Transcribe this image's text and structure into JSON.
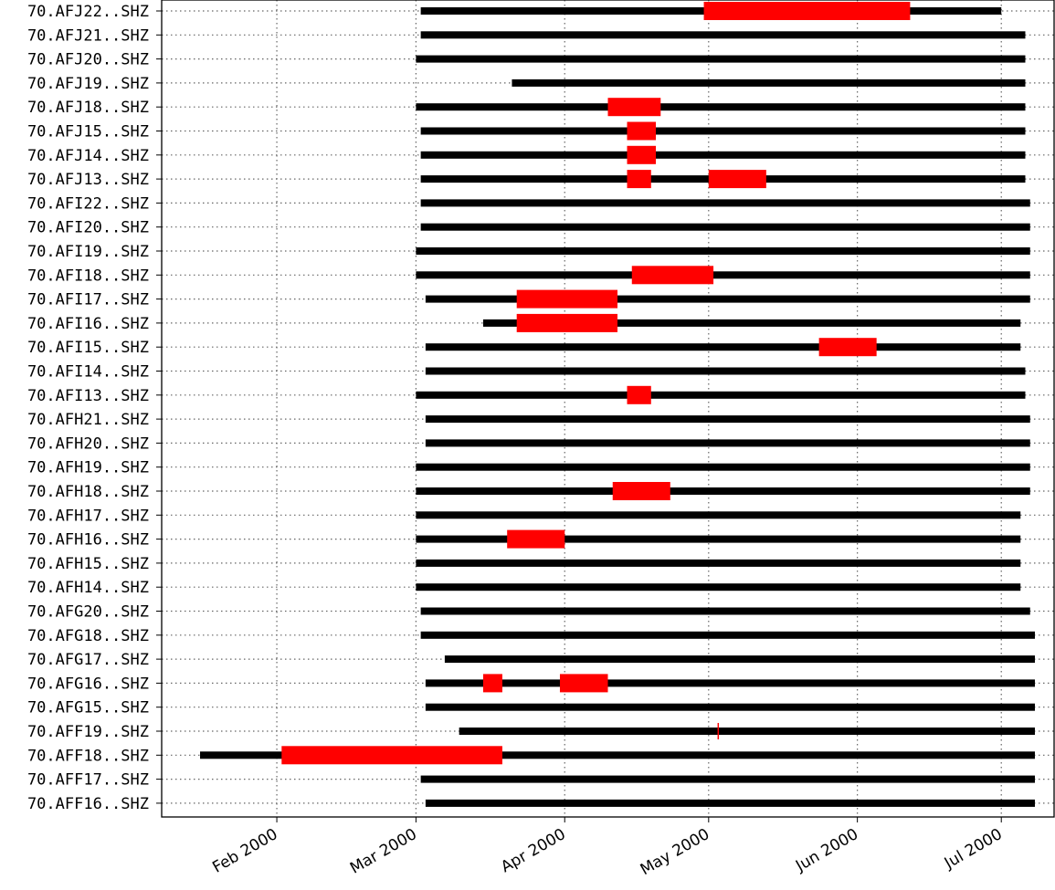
{
  "chart_data": {
    "type": "gantt",
    "title": "",
    "xlabel": "",
    "ylabel": "",
    "grid": true,
    "colors": {
      "data": "#000000",
      "gap": "#ff0000"
    },
    "x_range": [
      "2000-01-08",
      "2000-07-12"
    ],
    "x_ticks": [
      {
        "date": "2000-02-01",
        "label": "Feb 2000"
      },
      {
        "date": "2000-03-01",
        "label": "Mar 2000"
      },
      {
        "date": "2000-04-01",
        "label": "Apr 2000"
      },
      {
        "date": "2000-05-01",
        "label": "May 2000"
      },
      {
        "date": "2000-06-01",
        "label": "Jun 2000"
      },
      {
        "date": "2000-07-01",
        "label": "Jul 2000"
      }
    ],
    "stations": [
      {
        "label": "70.AFJ22..SHZ",
        "start": "2000-03-02",
        "end": "2000-07-01",
        "gaps": [
          [
            "2000-04-30",
            "2000-06-12"
          ]
        ]
      },
      {
        "label": "70.AFJ21..SHZ",
        "start": "2000-03-02",
        "end": "2000-07-06",
        "gaps": []
      },
      {
        "label": "70.AFJ20..SHZ",
        "start": "2000-03-01",
        "end": "2000-07-06",
        "gaps": []
      },
      {
        "label": "70.AFJ19..SHZ",
        "start": "2000-03-21",
        "end": "2000-07-06",
        "gaps": []
      },
      {
        "label": "70.AFJ18..SHZ",
        "start": "2000-03-01",
        "end": "2000-07-06",
        "gaps": [
          [
            "2000-04-10",
            "2000-04-21"
          ]
        ]
      },
      {
        "label": "70.AFJ15..SHZ",
        "start": "2000-03-02",
        "end": "2000-07-06",
        "gaps": [
          [
            "2000-04-14",
            "2000-04-20"
          ]
        ]
      },
      {
        "label": "70.AFJ14..SHZ",
        "start": "2000-03-02",
        "end": "2000-07-06",
        "gaps": [
          [
            "2000-04-14",
            "2000-04-20"
          ]
        ]
      },
      {
        "label": "70.AFJ13..SHZ",
        "start": "2000-03-02",
        "end": "2000-07-06",
        "gaps": [
          [
            "2000-04-14",
            "2000-04-19"
          ],
          [
            "2000-05-01",
            "2000-05-13"
          ]
        ]
      },
      {
        "label": "70.AFI22..SHZ",
        "start": "2000-03-02",
        "end": "2000-07-07",
        "gaps": []
      },
      {
        "label": "70.AFI20..SHZ",
        "start": "2000-03-02",
        "end": "2000-07-07",
        "gaps": []
      },
      {
        "label": "70.AFI19..SHZ",
        "start": "2000-03-01",
        "end": "2000-07-07",
        "gaps": []
      },
      {
        "label": "70.AFI18..SHZ",
        "start": "2000-03-01",
        "end": "2000-07-07",
        "gaps": [
          [
            "2000-04-15",
            "2000-05-02"
          ]
        ]
      },
      {
        "label": "70.AFI17..SHZ",
        "start": "2000-03-03",
        "end": "2000-07-07",
        "gaps": [
          [
            "2000-03-22",
            "2000-04-12"
          ]
        ]
      },
      {
        "label": "70.AFI16..SHZ",
        "start": "2000-03-15",
        "end": "2000-07-05",
        "gaps": [
          [
            "2000-03-22",
            "2000-04-12"
          ]
        ]
      },
      {
        "label": "70.AFI15..SHZ",
        "start": "2000-03-03",
        "end": "2000-07-05",
        "gaps": [
          [
            "2000-05-24",
            "2000-06-05"
          ]
        ]
      },
      {
        "label": "70.AFI14..SHZ",
        "start": "2000-03-03",
        "end": "2000-07-06",
        "gaps": []
      },
      {
        "label": "70.AFI13..SHZ",
        "start": "2000-03-01",
        "end": "2000-07-06",
        "gaps": [
          [
            "2000-04-14",
            "2000-04-19"
          ]
        ]
      },
      {
        "label": "70.AFH21..SHZ",
        "start": "2000-03-03",
        "end": "2000-07-07",
        "gaps": []
      },
      {
        "label": "70.AFH20..SHZ",
        "start": "2000-03-03",
        "end": "2000-07-07",
        "gaps": []
      },
      {
        "label": "70.AFH19..SHZ",
        "start": "2000-03-01",
        "end": "2000-07-07",
        "gaps": []
      },
      {
        "label": "70.AFH18..SHZ",
        "start": "2000-03-01",
        "end": "2000-07-07",
        "gaps": [
          [
            "2000-04-11",
            "2000-04-23"
          ]
        ]
      },
      {
        "label": "70.AFH17..SHZ",
        "start": "2000-03-01",
        "end": "2000-07-05",
        "gaps": []
      },
      {
        "label": "70.AFH16..SHZ",
        "start": "2000-03-01",
        "end": "2000-07-05",
        "gaps": [
          [
            "2000-03-20",
            "2000-04-01"
          ]
        ]
      },
      {
        "label": "70.AFH15..SHZ",
        "start": "2000-03-01",
        "end": "2000-07-05",
        "gaps": []
      },
      {
        "label": "70.AFH14..SHZ",
        "start": "2000-03-01",
        "end": "2000-07-05",
        "gaps": []
      },
      {
        "label": "70.AFG20..SHZ",
        "start": "2000-03-02",
        "end": "2000-07-07",
        "gaps": []
      },
      {
        "label": "70.AFG18..SHZ",
        "start": "2000-03-02",
        "end": "2000-07-08",
        "gaps": []
      },
      {
        "label": "70.AFG17..SHZ",
        "start": "2000-03-07",
        "end": "2000-07-08",
        "gaps": []
      },
      {
        "label": "70.AFG16..SHZ",
        "start": "2000-03-03",
        "end": "2000-07-08",
        "gaps": [
          [
            "2000-03-15",
            "2000-03-19"
          ],
          [
            "2000-03-31",
            "2000-04-10"
          ]
        ]
      },
      {
        "label": "70.AFG15..SHZ",
        "start": "2000-03-03",
        "end": "2000-07-08",
        "gaps": []
      },
      {
        "label": "70.AFF19..SHZ",
        "start": "2000-03-10",
        "end": "2000-07-08",
        "gaps": [
          [
            "2000-05-03",
            "2000-05-03"
          ]
        ]
      },
      {
        "label": "70.AFF18..SHZ",
        "start": "2000-01-16",
        "end": "2000-07-08",
        "gaps": [
          [
            "2000-02-02",
            "2000-03-19"
          ]
        ]
      },
      {
        "label": "70.AFF17..SHZ",
        "start": "2000-03-02",
        "end": "2000-07-08",
        "gaps": []
      },
      {
        "label": "70.AFF16..SHZ",
        "start": "2000-03-03",
        "end": "2000-07-08",
        "gaps": []
      }
    ]
  }
}
